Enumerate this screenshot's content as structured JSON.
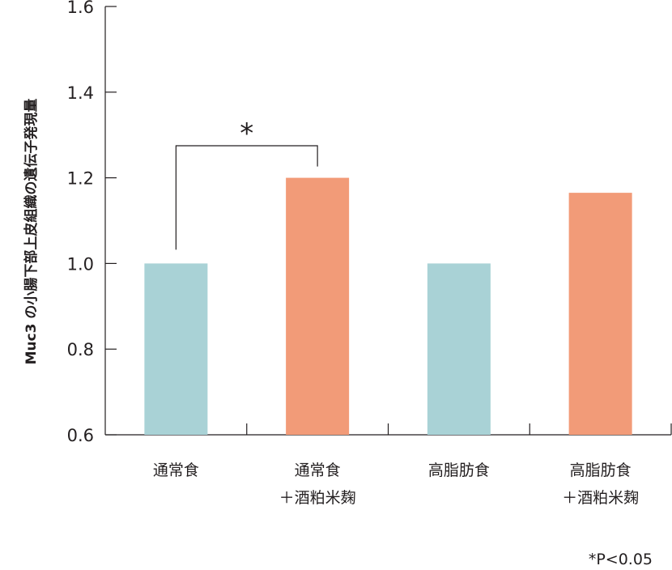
{
  "chart_data": {
    "type": "bar",
    "categories": [
      [
        "通常食"
      ],
      [
        "通常食",
        "＋酒粕米麹"
      ],
      [
        "高脂肪食"
      ],
      [
        "高脂肪食",
        "＋酒粕米麹"
      ]
    ],
    "values": [
      1.0,
      1.2,
      1.0,
      1.165
    ],
    "colors": [
      "#a9d2d6",
      "#f29b78",
      "#a9d2d6",
      "#f29b78"
    ],
    "ylabel": "Muc3 の小腸下部上皮組織の遺伝子発現量",
    "xlabel": "",
    "ylim": [
      0.6,
      1.6
    ],
    "yticks": [
      "0.6",
      "0.8",
      "1.0",
      "1.2",
      "1.4",
      "1.6"
    ],
    "grid": false,
    "significance": {
      "from": 0,
      "to": 1,
      "label": "*"
    },
    "footnote": "*P<0.05"
  }
}
